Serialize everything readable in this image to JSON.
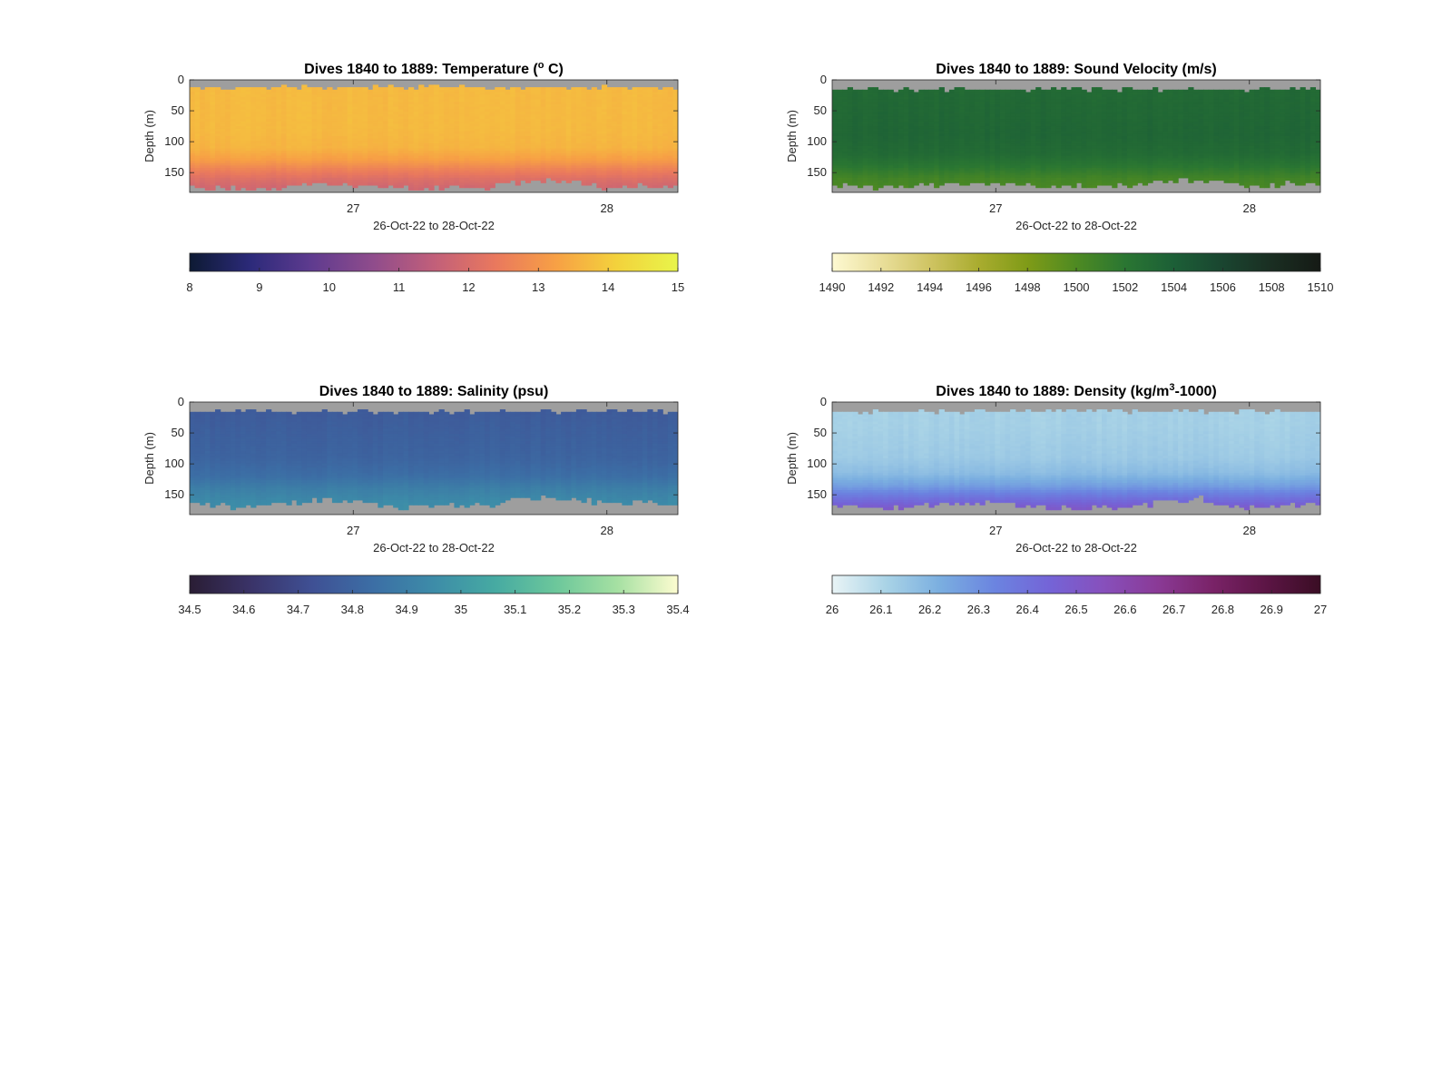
{
  "figure": {
    "background": "#ffffff"
  },
  "chart_data": [
    {
      "id": "temperature",
      "type": "heatmap",
      "title": "Dives 1840 to 1889: Temperature (",
      "title_superscript": "o",
      "title_suffix": " C)",
      "ylabel": "Depth (m)",
      "xlabel": "26-Oct-22 to 28-Oct-22",
      "xlim": [
        26.355,
        28.28
      ],
      "ylim": [
        0,
        182
      ],
      "y_reversed": true,
      "xticks": [
        27,
        28
      ],
      "xtick_labels": [
        "27",
        "28"
      ],
      "yticks": [
        0,
        50,
        100,
        150
      ],
      "ytick_labels": [
        "0",
        "50",
        "100",
        "150"
      ],
      "nodata_color": "#9e9e9e",
      "field": {
        "surface_m": 12,
        "profile_depths_m": [
          0,
          40,
          80,
          110,
          130,
          145,
          160,
          175
        ],
        "profile_values": [
          13.7,
          13.7,
          13.7,
          13.6,
          13.2,
          12.6,
          12.1,
          11.8
        ],
        "bottom_m_by_time": [
          [
            26.35,
            172
          ],
          [
            26.6,
            175
          ],
          [
            26.9,
            168
          ],
          [
            27.2,
            173
          ],
          [
            27.5,
            174
          ],
          [
            27.8,
            160
          ],
          [
            28.0,
            173
          ],
          [
            28.28,
            170
          ]
        ]
      },
      "colorbar": {
        "range": [
          8,
          15
        ],
        "ticks": [
          8,
          9,
          10,
          11,
          12,
          13,
          14,
          15
        ],
        "tick_labels": [
          "8",
          "9",
          "10",
          "11",
          "12",
          "13",
          "14",
          "15"
        ],
        "colors": [
          "#0d1a33",
          "#2c2a7a",
          "#5f3b8f",
          "#8f4c8c",
          "#c15f7a",
          "#e9785e",
          "#f7a045",
          "#f3d23c",
          "#e8f54a"
        ]
      }
    },
    {
      "id": "sound-velocity",
      "type": "heatmap",
      "title": "Dives 1840 to 1889: Sound Velocity (m/s)",
      "title_superscript": "",
      "title_suffix": "",
      "ylabel": "Depth (m)",
      "xlabel": "26-Oct-22 to 28-Oct-22",
      "xlim": [
        26.355,
        28.28
      ],
      "ylim": [
        0,
        182
      ],
      "y_reversed": true,
      "xticks": [
        27,
        28
      ],
      "xtick_labels": [
        "27",
        "28"
      ],
      "yticks": [
        0,
        50,
        100,
        150
      ],
      "ytick_labels": [
        "0",
        "50",
        "100",
        "150"
      ],
      "nodata_color": "#9e9e9e",
      "field": {
        "surface_m": 15,
        "profile_depths_m": [
          0,
          40,
          90,
          120,
          140,
          160,
          175
        ],
        "profile_values": [
          1503.0,
          1503.2,
          1503.4,
          1503.0,
          1502.0,
          1500.6,
          1500.2
        ],
        "bottom_m_by_time": [
          [
            26.35,
            170
          ],
          [
            26.6,
            172
          ],
          [
            26.9,
            166
          ],
          [
            27.2,
            172
          ],
          [
            27.5,
            170
          ],
          [
            27.8,
            162
          ],
          [
            28.0,
            170
          ],
          [
            28.28,
            166
          ]
        ]
      },
      "colorbar": {
        "range": [
          1490,
          1510
        ],
        "ticks": [
          1490,
          1492,
          1494,
          1496,
          1498,
          1500,
          1502,
          1504,
          1506,
          1508,
          1510
        ],
        "tick_labels": [
          "1490",
          "1492",
          "1494",
          "1496",
          "1498",
          "1500",
          "1502",
          "1504",
          "1506",
          "1508",
          "1510"
        ],
        "colors": [
          "#fdf9d2",
          "#eadf9b",
          "#cfc463",
          "#a9ac2f",
          "#7f9b17",
          "#4e8a22",
          "#2a7632",
          "#1c5f37",
          "#1a4530",
          "#1a2e22",
          "#151a15"
        ]
      }
    },
    {
      "id": "salinity",
      "type": "heatmap",
      "title": "Dives 1840 to 1889: Salinity (psu)",
      "title_superscript": "",
      "title_suffix": "",
      "ylabel": "Depth (m)",
      "xlabel": "26-Oct-22 to 28-Oct-22",
      "xlim": [
        26.355,
        28.28
      ],
      "ylim": [
        0,
        182
      ],
      "y_reversed": true,
      "xticks": [
        27,
        28
      ],
      "xtick_labels": [
        "27",
        "28"
      ],
      "yticks": [
        0,
        50,
        100,
        150
      ],
      "ytick_labels": [
        "0",
        "50",
        "100",
        "150"
      ],
      "nodata_color": "#9e9e9e",
      "field": {
        "surface_m": 15,
        "profile_depths_m": [
          0,
          40,
          90,
          120,
          140,
          160,
          175
        ],
        "profile_values": [
          34.76,
          34.78,
          34.8,
          34.84,
          34.9,
          34.94,
          34.96
        ],
        "bottom_m_by_time": [
          [
            26.35,
            166
          ],
          [
            26.6,
            168
          ],
          [
            26.9,
            158
          ],
          [
            27.2,
            170
          ],
          [
            27.5,
            166
          ],
          [
            27.8,
            152
          ],
          [
            28.0,
            166
          ],
          [
            28.28,
            160
          ]
        ]
      },
      "colorbar": {
        "range": [
          34.5,
          35.4
        ],
        "ticks": [
          34.5,
          34.6,
          34.7,
          34.8,
          34.9,
          35.0,
          35.1,
          35.2,
          35.3,
          35.4
        ],
        "tick_labels": [
          "34.5",
          "34.6",
          "34.7",
          "34.8",
          "34.9",
          "35",
          "35.1",
          "35.2",
          "35.3",
          "35.4"
        ],
        "colors": [
          "#2a1d34",
          "#3a3368",
          "#3f5094",
          "#3c6ea5",
          "#3d8ca8",
          "#46aaa2",
          "#6cc79b",
          "#a5e0a2",
          "#fdfcd0"
        ]
      }
    },
    {
      "id": "density",
      "type": "heatmap",
      "title": "Dives 1840 to 1889: Density (kg/m",
      "title_superscript": "3",
      "title_suffix": "-1000)",
      "ylabel": "Depth (m)",
      "xlabel": "26-Oct-22 to 28-Oct-22",
      "xlim": [
        26.355,
        28.28
      ],
      "ylim": [
        0,
        182
      ],
      "y_reversed": true,
      "xticks": [
        27,
        28
      ],
      "xtick_labels": [
        "27",
        "28"
      ],
      "yticks": [
        0,
        50,
        100,
        150
      ],
      "ytick_labels": [
        "0",
        "50",
        "100",
        "150"
      ],
      "nodata_color": "#9e9e9e",
      "field": {
        "surface_m": 15,
        "profile_depths_m": [
          0,
          40,
          90,
          115,
          135,
          150,
          165,
          175
        ],
        "profile_values": [
          26.12,
          26.12,
          26.14,
          26.18,
          26.26,
          26.36,
          26.46,
          26.52
        ],
        "bottom_m_by_time": [
          [
            26.35,
            168
          ],
          [
            26.6,
            172
          ],
          [
            26.9,
            160
          ],
          [
            27.2,
            172
          ],
          [
            27.5,
            168
          ],
          [
            27.8,
            156
          ],
          [
            28.0,
            172
          ],
          [
            28.28,
            162
          ]
        ]
      },
      "colorbar": {
        "range": [
          26,
          27
        ],
        "ticks": [
          26.0,
          26.1,
          26.2,
          26.3,
          26.4,
          26.5,
          26.6,
          26.7,
          26.8,
          26.9,
          27.0
        ],
        "tick_labels": [
          "26",
          "26.1",
          "26.2",
          "26.3",
          "26.4",
          "26.5",
          "26.6",
          "26.7",
          "26.8",
          "26.9",
          "27"
        ],
        "colors": [
          "#e9f4f6",
          "#a9d3e6",
          "#7aaee0",
          "#6b84e0",
          "#7464d7",
          "#8750bc",
          "#8a3a96",
          "#7a2368",
          "#5c1545",
          "#3a0d24"
        ]
      }
    }
  ]
}
